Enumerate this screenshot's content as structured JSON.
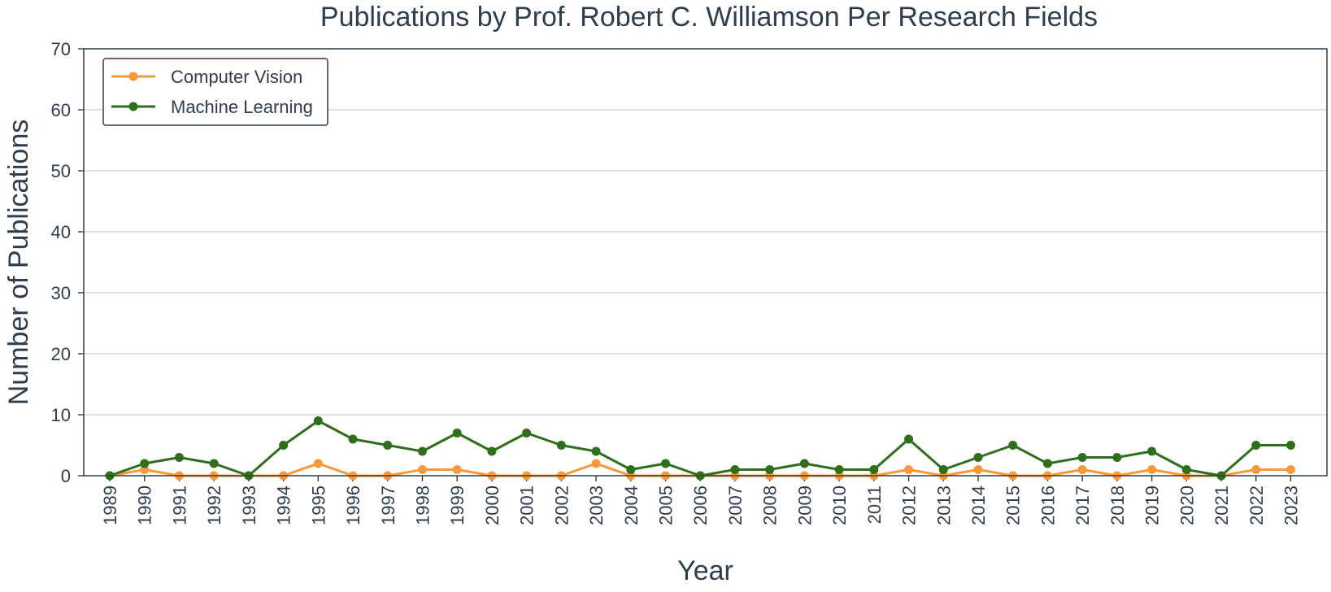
{
  "chart_data": {
    "type": "line",
    "title": "Publications by Prof. Robert C. Williamson Per Research Fields",
    "xlabel": "Year",
    "ylabel": "Number of Publications",
    "ylim": [
      0,
      70
    ],
    "yticks": [
      0,
      10,
      20,
      30,
      40,
      50,
      60,
      70
    ],
    "grid": "horizontal",
    "legend_position": "top-left",
    "x": [
      "1989",
      "1990",
      "1991",
      "1992",
      "1993",
      "1994",
      "1995",
      "1996",
      "1997",
      "1998",
      "1999",
      "2000",
      "2001",
      "2002",
      "2003",
      "2004",
      "2005",
      "2006",
      "2007",
      "2008",
      "2009",
      "2010",
      "2011",
      "2012",
      "2013",
      "2014",
      "2015",
      "2016",
      "2017",
      "2018",
      "2019",
      "2020",
      "2021",
      "2022",
      "2023"
    ],
    "series": [
      {
        "name": "Computer Vision",
        "color": "#f7993a",
        "values": [
          0,
          1,
          0,
          0,
          0,
          0,
          2,
          0,
          0,
          1,
          1,
          0,
          0,
          0,
          2,
          0,
          0,
          0,
          0,
          0,
          0,
          0,
          0,
          1,
          0,
          1,
          0,
          0,
          1,
          0,
          1,
          0,
          0,
          1,
          1
        ]
      },
      {
        "name": "Machine Learning",
        "color": "#2f6e1b",
        "values": [
          0,
          2,
          3,
          2,
          0,
          5,
          9,
          6,
          5,
          4,
          7,
          4,
          7,
          5,
          4,
          1,
          2,
          0,
          1,
          1,
          2,
          1,
          1,
          6,
          1,
          3,
          5,
          2,
          3,
          3,
          4,
          1,
          0,
          5,
          5
        ]
      }
    ]
  }
}
